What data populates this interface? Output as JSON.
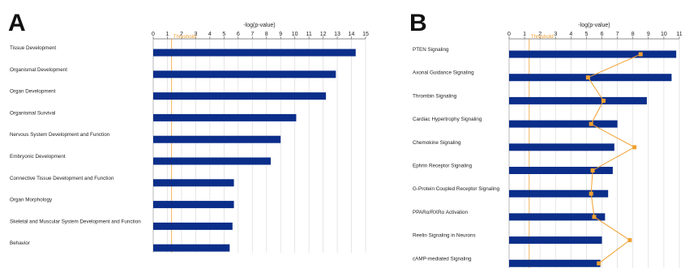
{
  "chart_data": [
    {
      "panel_label": "A",
      "type": "bar",
      "orientation": "horizontal",
      "axis_title": "-log(p-value)",
      "xlim": [
        0,
        15
      ],
      "xticks": [
        0,
        1,
        2,
        3,
        4,
        5,
        6,
        7,
        8,
        9,
        10,
        11,
        12,
        13,
        14,
        15
      ],
      "threshold_label": "Threshold",
      "threshold_value": 1.3,
      "grid": true,
      "bar_color": "#0b2e8a",
      "threshold_color": "#f0a030",
      "categories": [
        "Tissue Development",
        "Organismal Development",
        "Organ Development",
        "Organismal Survival",
        "Nervous System Development and Function",
        "Embryonic Development",
        "Connective Tissue Development and Function",
        "Organ Morphology",
        "Skeletal and Muscular System Development and Function",
        "Behavior"
      ],
      "values": [
        14.3,
        12.9,
        12.2,
        10.1,
        9.0,
        8.3,
        5.7,
        5.7,
        5.6,
        5.4
      ]
    },
    {
      "panel_label": "B",
      "type": "bar",
      "orientation": "horizontal",
      "axis_title": "-log(p-value)",
      "xlim": [
        0,
        11
      ],
      "xticks": [
        0,
        1,
        2,
        3,
        4,
        5,
        6,
        7,
        8,
        9,
        10,
        11
      ],
      "threshold_label": "Threshold",
      "threshold_value": 1.3,
      "grid": true,
      "bar_color": "#0b2e8a",
      "ratio_color": "#f0a030",
      "categories": [
        "PTEN Signaling",
        "Axonal Guidance Signaling",
        "Thrombin Signaling",
        "Cardiac Hypertrophy Signaling",
        "Chemokine Signaling",
        "Ephrin Receptor Signaling",
        "G-Protein Coupled Receptor Signaling",
        "PPARα/RXRα Activation",
        "Reelin Signaling in Neurons",
        "cAMP-mediated Signaling"
      ],
      "values": [
        10.8,
        10.5,
        8.9,
        7.0,
        6.8,
        6.7,
        6.4,
        6.2,
        6.0,
        5.9
      ],
      "ratio_marker_positions": [
        8.5,
        5.1,
        6.1,
        5.3,
        8.1,
        5.4,
        5.3,
        5.5,
        7.8,
        5.8
      ]
    }
  ]
}
